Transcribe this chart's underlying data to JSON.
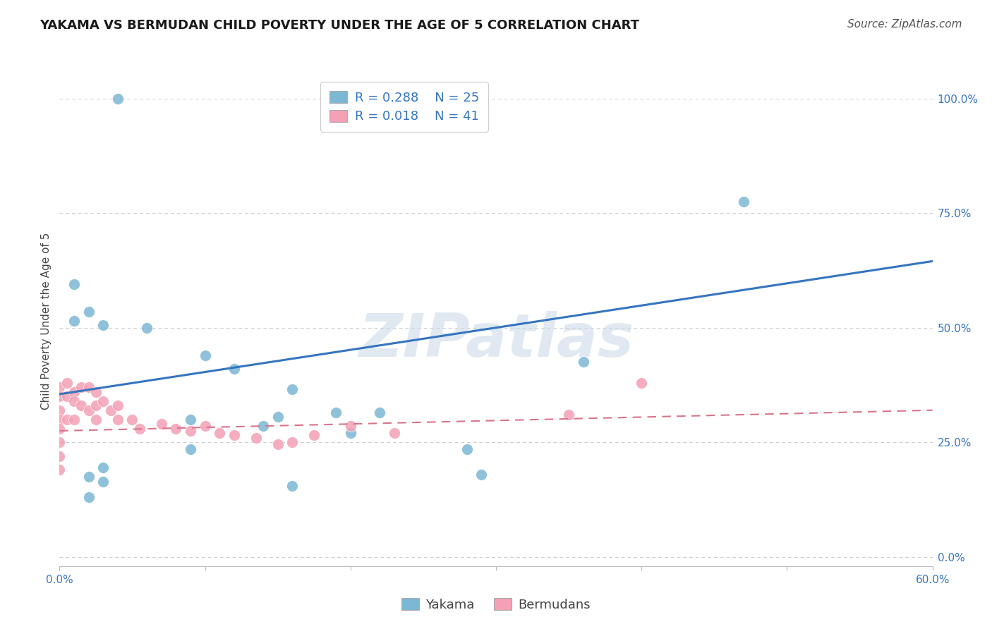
{
  "title": "YAKAMA VS BERMUDAN CHILD POVERTY UNDER THE AGE OF 5 CORRELATION CHART",
  "source": "Source: ZipAtlas.com",
  "ylabel": "Child Poverty Under the Age of 5",
  "watermark": "ZIPatlas",
  "xlim": [
    0.0,
    0.6
  ],
  "ylim": [
    -0.02,
    1.05
  ],
  "xtick_positions": [
    0.0,
    0.1,
    0.2,
    0.3,
    0.4,
    0.5,
    0.6
  ],
  "xticklabels": [
    "0.0%",
    "",
    "",
    "",
    "",
    "",
    "60.0%"
  ],
  "yticks_right": [
    0.0,
    0.25,
    0.5,
    0.75,
    1.0
  ],
  "yticklabels_right": [
    "0.0%",
    "25.0%",
    "50.0%",
    "75.0%",
    "100.0%"
  ],
  "yakama_color": "#7bb8d4",
  "bermuda_color": "#f4a0b5",
  "trend_blue": "#3575c0",
  "trend_pink": "#d9748a",
  "legend_R1": "R = 0.288",
  "legend_N1": "N = 25",
  "legend_R2": "R = 0.018",
  "legend_N2": "N = 41",
  "legend_label1": "Yakama",
  "legend_label2": "Bermudans",
  "yakama_x": [
    0.04,
    0.01,
    0.02,
    0.01,
    0.03,
    0.06,
    0.1,
    0.12,
    0.16,
    0.19,
    0.22,
    0.15,
    0.28,
    0.09,
    0.47,
    0.36,
    0.14,
    0.09,
    0.03,
    0.03,
    0.02,
    0.02,
    0.16,
    0.2,
    0.29
  ],
  "yakama_y": [
    1.0,
    0.595,
    0.535,
    0.515,
    0.505,
    0.5,
    0.44,
    0.41,
    0.365,
    0.315,
    0.315,
    0.305,
    0.235,
    0.3,
    0.775,
    0.425,
    0.285,
    0.235,
    0.195,
    0.165,
    0.175,
    0.13,
    0.155,
    0.27,
    0.18
  ],
  "bermuda_x": [
    0.0,
    0.0,
    0.0,
    0.0,
    0.0,
    0.0,
    0.0,
    0.0,
    0.005,
    0.005,
    0.005,
    0.01,
    0.01,
    0.01,
    0.015,
    0.015,
    0.02,
    0.02,
    0.025,
    0.025,
    0.025,
    0.03,
    0.035,
    0.04,
    0.04,
    0.05,
    0.055,
    0.07,
    0.08,
    0.09,
    0.1,
    0.11,
    0.12,
    0.135,
    0.15,
    0.16,
    0.175,
    0.2,
    0.23,
    0.35,
    0.4
  ],
  "bermuda_y": [
    0.37,
    0.35,
    0.32,
    0.3,
    0.28,
    0.25,
    0.22,
    0.19,
    0.38,
    0.35,
    0.3,
    0.36,
    0.34,
    0.3,
    0.37,
    0.33,
    0.37,
    0.32,
    0.36,
    0.33,
    0.3,
    0.34,
    0.32,
    0.33,
    0.3,
    0.3,
    0.28,
    0.29,
    0.28,
    0.275,
    0.285,
    0.27,
    0.265,
    0.26,
    0.245,
    0.25,
    0.265,
    0.285,
    0.27,
    0.31,
    0.38
  ],
  "blue_line_x": [
    0.0,
    0.6
  ],
  "blue_line_y": [
    0.355,
    0.645
  ],
  "pink_line_x": [
    0.0,
    0.6
  ],
  "pink_line_y": [
    0.275,
    0.32
  ],
  "title_fontsize": 13,
  "axis_label_fontsize": 11,
  "tick_fontsize": 11,
  "legend_fontsize": 13,
  "source_fontsize": 11
}
